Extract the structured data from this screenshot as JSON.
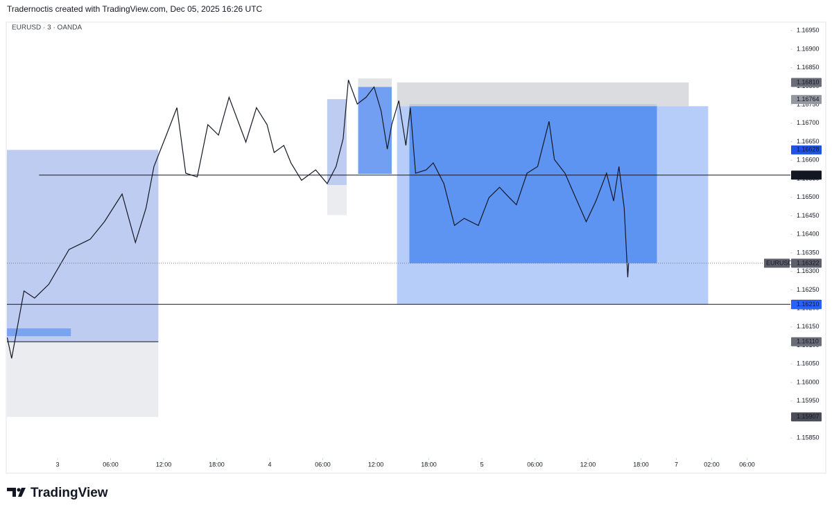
{
  "header": {
    "attribution": "Tradernoctis created with TradingView.com, Dec 05, 2025 16:26 UTC",
    "logo": "TradingView"
  },
  "chart_data": {
    "type": "line",
    "title": "EURUSD · 3 · OANDA",
    "x": [
      -5.7,
      -5.2,
      -3.8,
      -2.6,
      -1.0,
      1.3,
      3.7,
      5.3,
      7.3,
      8.8,
      10.0,
      10.9,
      12.3,
      13.5,
      14.5,
      15.8,
      17.0,
      18.2,
      19.4,
      21.3,
      22.5,
      23.7,
      24.5,
      25.6,
      26.4,
      27.6,
      29.2,
      30.5,
      31.5,
      32.3,
      32.9,
      33.9,
      34.9,
      35.8,
      36.6,
      37.3,
      37.8,
      38.6,
      39.4,
      39.9,
      40.5,
      41.7,
      42.5,
      43.7,
      44.9,
      46.0,
      47.6,
      48.8,
      50.0,
      51.1,
      51.9,
      53.1,
      54.3,
      55.6,
      56.2,
      57.4,
      58.6,
      59.8,
      60.9,
      62.1,
      62.9,
      63.5,
      64.1,
      64.5,
      64.6
    ],
    "series": [
      {
        "name": "EURUSD",
        "color": "#131722",
        "values": [
          1.16121,
          1.16065,
          1.16247,
          1.16228,
          1.16265,
          1.16359,
          1.16387,
          1.16434,
          1.16509,
          1.16378,
          1.16471,
          1.16583,
          1.16668,
          1.16742,
          1.16565,
          1.16555,
          1.16696,
          1.16668,
          1.1677,
          1.16649,
          1.16742,
          1.16696,
          1.16621,
          1.1664,
          1.16593,
          1.16546,
          1.16574,
          1.16537,
          1.16583,
          1.16658,
          1.16817,
          1.16752,
          1.1677,
          1.16798,
          1.16733,
          1.1663,
          1.16696,
          1.16761,
          1.1664,
          1.16742,
          1.16565,
          1.16574,
          1.16593,
          1.16537,
          1.16424,
          1.16443,
          1.16424,
          1.16499,
          1.16527,
          1.16499,
          1.1648,
          1.16565,
          1.16583,
          1.16705,
          1.16602,
          1.16565,
          1.16499,
          1.16434,
          1.1649,
          1.16565,
          1.1649,
          1.16583,
          1.16471,
          1.16284,
          1.16322
        ]
      }
    ],
    "xlim": [
      -5.73,
      82.9
    ],
    "xticks": [
      {
        "value": 0,
        "label": "3"
      },
      {
        "value": 6,
        "label": "06:00"
      },
      {
        "value": 12,
        "label": "12:00"
      },
      {
        "value": 18,
        "label": "18:00"
      },
      {
        "value": 24,
        "label": "4"
      },
      {
        "value": 30,
        "label": "06:00"
      },
      {
        "value": 36,
        "label": "12:00"
      },
      {
        "value": 42,
        "label": "18:00"
      },
      {
        "value": 48,
        "label": "5"
      },
      {
        "value": 54,
        "label": "06:00"
      },
      {
        "value": 60,
        "label": "12:00"
      },
      {
        "value": 66,
        "label": "18:00"
      },
      {
        "value": 70,
        "label": "7"
      },
      {
        "value": 74,
        "label": "02:00"
      },
      {
        "value": 78,
        "label": "06:00"
      }
    ],
    "ylim": [
      1.15798,
      1.16971
    ],
    "yticks": [
      {
        "value": 1.1585,
        "label": "1.15850"
      },
      {
        "value": 1.159,
        "label": "1.15900"
      },
      {
        "value": 1.1595,
        "label": "1.15950"
      },
      {
        "value": 1.16,
        "label": "1.16000"
      },
      {
        "value": 1.1605,
        "label": "1.16050"
      },
      {
        "value": 1.161,
        "label": "1.16100"
      },
      {
        "value": 1.1615,
        "label": "1.16150"
      },
      {
        "value": 1.162,
        "label": "1.16200"
      },
      {
        "value": 1.1625,
        "label": "1.16250"
      },
      {
        "value": 1.163,
        "label": "1.16300"
      },
      {
        "value": 1.1635,
        "label": "1.16350"
      },
      {
        "value": 1.164,
        "label": "1.16400"
      },
      {
        "value": 1.1645,
        "label": "1.16450"
      },
      {
        "value": 1.165,
        "label": "1.16500"
      },
      {
        "value": 1.1655,
        "label": "1.16550"
      },
      {
        "value": 1.166,
        "label": "1.16600"
      },
      {
        "value": 1.1665,
        "label": "1.16650"
      },
      {
        "value": 1.167,
        "label": "1.16700"
      },
      {
        "value": 1.1675,
        "label": "1.16750"
      },
      {
        "value": 1.168,
        "label": "1.16800"
      },
      {
        "value": 1.1685,
        "label": "1.16850"
      },
      {
        "value": 1.169,
        "label": "1.16900"
      },
      {
        "value": 1.1695,
        "label": "1.16950"
      }
    ],
    "zones": [
      {
        "x": [
          -5.73,
          11.4
        ],
        "y": [
          1.1611,
          1.16628
        ],
        "color": "#b4c3ef"
      },
      {
        "x": [
          -5.73,
          11.4
        ],
        "y": [
          1.15907,
          1.1611
        ],
        "color": "#e8e9ec"
      },
      {
        "x": [
          -5.73,
          1.5
        ],
        "y": [
          1.16125,
          1.16146
        ],
        "color": "#6f9cf0"
      },
      {
        "x": [
          30.5,
          32.7
        ],
        "y": [
          1.16533,
          1.16765
        ],
        "color": "#b4c3ef"
      },
      {
        "x": [
          30.5,
          32.7
        ],
        "y": [
          1.16452,
          1.16533
        ],
        "color": "#e8e9ec"
      },
      {
        "x": [
          34.0,
          37.8
        ],
        "y": [
          1.16563,
          1.16798
        ],
        "color": "#5b8ef0"
      },
      {
        "x": [
          34.0,
          37.8
        ],
        "y": [
          1.16798,
          1.16821
        ],
        "color": "#dcdde0"
      },
      {
        "x": [
          38.4,
          73.6
        ],
        "y": [
          1.16211,
          1.16746
        ],
        "color": "#a9c4f8"
      },
      {
        "x": [
          39.8,
          67.8
        ],
        "y": [
          1.16322,
          1.16752
        ],
        "color": "#4d8af0"
      },
      {
        "x": [
          38.4,
          71.4
        ],
        "y": [
          1.16746,
          1.1681
        ],
        "color": "#d5d6da"
      }
    ],
    "levels": [
      {
        "value": 1.1656,
        "x": [
          -2.1,
          82.9
        ],
        "color": "#131722"
      },
      {
        "value": 1.16211,
        "x": [
          -5.73,
          82.9
        ],
        "color": "#131722"
      },
      {
        "value": 1.1611,
        "x": [
          -5.73,
          11.4
        ],
        "color": "#131722"
      }
    ],
    "symbol_label": "EURUSD",
    "price_labels": [
      {
        "value": 1.1681,
        "label": "1.16810",
        "color": "#6a6d78"
      },
      {
        "value": 1.16764,
        "label": "1.16764",
        "color": "#9598a1"
      },
      {
        "value": 1.16628,
        "label": "1.16628",
        "color": "#1e53e5"
      },
      {
        "value": 1.1656,
        "label": "1.16560",
        "color": "#131722"
      },
      {
        "value": 1.16322,
        "label": "1.16322",
        "color": "#5d606b"
      },
      {
        "value": 1.16211,
        "label": "1.16211",
        "color": "#131722"
      },
      {
        "value": 1.1621,
        "label": "1.16210",
        "color": "#2962ff"
      },
      {
        "value": 1.1611,
        "label": "1.16110",
        "color": "#6a6d78"
      },
      {
        "value": 1.15907,
        "label": "1.15907",
        "color": "#4a4d57"
      }
    ]
  }
}
